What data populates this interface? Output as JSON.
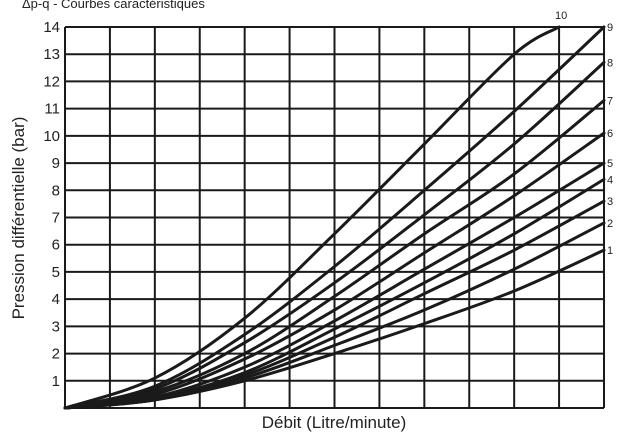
{
  "chart_data": {
    "type": "line",
    "title": "Δp-q - Courbes caractéristiques",
    "xlabel": "Débit (Litre/minute)",
    "ylabel": "Pression différentielle (bar)",
    "ylim": [
      0,
      14
    ],
    "xlim": [
      0,
      12
    ],
    "y_ticks": [
      "1",
      "2",
      "3",
      "4",
      "5",
      "6",
      "7",
      "8",
      "9",
      "10",
      "11",
      "12",
      "13",
      "14"
    ],
    "grid": true,
    "series": [
      {
        "name": "1",
        "x": [
          0,
          2,
          4,
          6,
          8,
          10,
          12
        ],
        "y": [
          0,
          0.3,
          1.0,
          2.0,
          3.1,
          4.3,
          5.8
        ]
      },
      {
        "name": "2",
        "x": [
          0,
          2,
          4,
          6,
          8,
          10,
          12
        ],
        "y": [
          0,
          0.3,
          1.1,
          2.3,
          3.6,
          5.1,
          6.8
        ]
      },
      {
        "name": "3",
        "x": [
          0,
          2,
          4,
          6,
          8,
          10,
          12
        ],
        "y": [
          0,
          0.3,
          1.2,
          2.6,
          4.2,
          5.8,
          7.6
        ]
      },
      {
        "name": "4",
        "x": [
          0,
          2,
          4,
          6,
          8,
          10,
          12
        ],
        "y": [
          0,
          0.35,
          1.3,
          2.9,
          4.6,
          6.4,
          8.4
        ]
      },
      {
        "name": "5",
        "x": [
          0,
          2,
          4,
          6,
          8,
          10,
          12
        ],
        "y": [
          0,
          0.4,
          1.5,
          3.2,
          5.1,
          7.0,
          9.0
        ]
      },
      {
        "name": "6",
        "x": [
          0,
          2,
          4,
          6,
          8,
          10,
          12
        ],
        "y": [
          0,
          0.5,
          1.8,
          3.6,
          5.7,
          7.8,
          10.1
        ]
      },
      {
        "name": "7",
        "x": [
          0,
          2,
          4,
          6,
          8,
          10,
          12
        ],
        "y": [
          0,
          0.6,
          2.0,
          4.1,
          6.4,
          8.6,
          11.3
        ]
      },
      {
        "name": "8",
        "x": [
          0,
          2,
          4,
          6,
          8,
          10,
          12
        ],
        "y": [
          0,
          0.7,
          2.4,
          4.6,
          7.1,
          9.7,
          12.7
        ]
      },
      {
        "name": "9",
        "x": [
          0,
          2,
          4,
          6,
          8,
          10,
          12
        ],
        "y": [
          0,
          0.8,
          2.7,
          5.2,
          8.0,
          10.9,
          14.0
        ]
      },
      {
        "name": "10",
        "x": [
          0,
          2,
          4,
          6,
          8,
          10,
          11
        ],
        "y": [
          0,
          1.1,
          3.3,
          6.4,
          9.7,
          13.0,
          14.0
        ]
      }
    ]
  }
}
